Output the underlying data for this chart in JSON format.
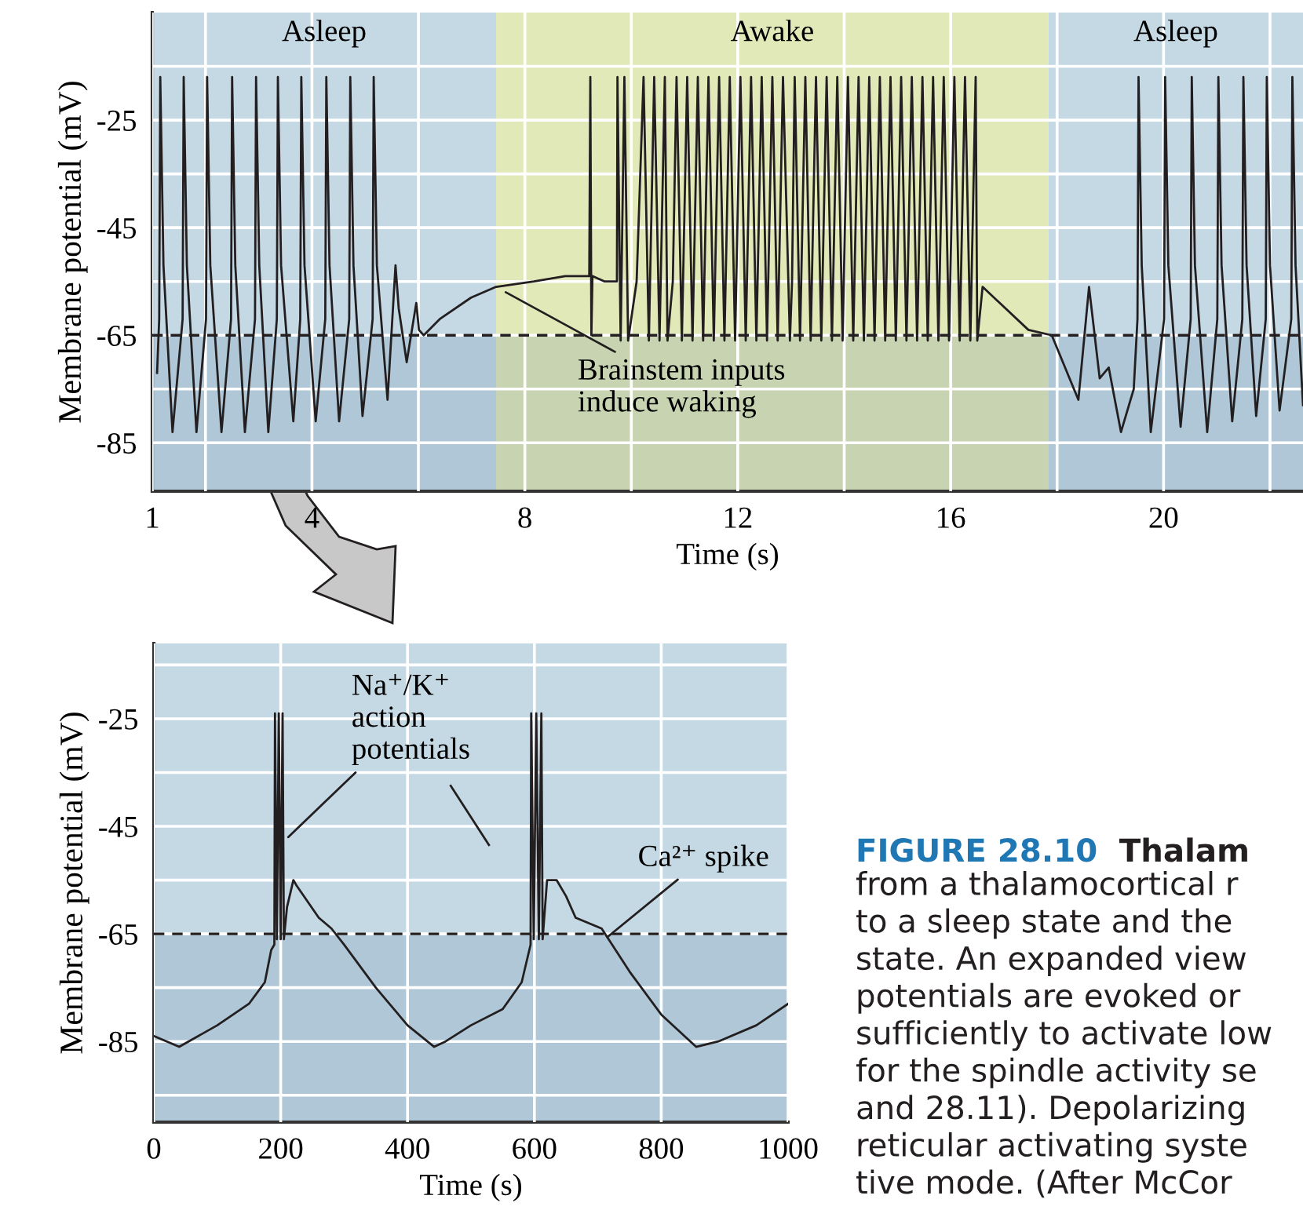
{
  "chart_data": [
    {
      "type": "line",
      "xlabel": "Time (s)",
      "ylabel": "Membrane potential (mV)",
      "xlim": [
        1,
        22.62
      ],
      "ylim": [
        -94,
        -5
      ],
      "xticks": [
        1,
        {
          "value": 2,
          "label": null
        },
        4,
        {
          "value": 6,
          "label": null
        },
        8,
        {
          "value": 10,
          "label": null
        },
        12,
        {
          "value": 14,
          "label": null
        },
        16,
        {
          "value": 18,
          "label": null
        },
        20,
        {
          "value": 22,
          "label": null
        }
      ],
      "yticks": [
        {
          "value": -15,
          "label": null
        },
        -25,
        {
          "value": -35,
          "label": null
        },
        -45,
        {
          "value": -55,
          "label": null
        },
        -65,
        {
          "value": -75,
          "label": null
        },
        -85
      ],
      "grid": true,
      "bands": [
        {
          "axis": "x",
          "from": 1,
          "to": 7.46,
          "label": "Asleep",
          "color": "#c5d9e5"
        },
        {
          "axis": "x",
          "from": 7.46,
          "to": 17.84,
          "label": "Awake",
          "color": "#e2e9b9"
        },
        {
          "axis": "x",
          "from": 17.84,
          "to": 22.62,
          "label": "Asleep",
          "color": "#c5d9e5"
        },
        {
          "axis": "y",
          "from": -94,
          "to": -65,
          "color": "#4a7090"
        }
      ],
      "ref_lines": [
        {
          "axis": "y",
          "value": -65,
          "color": "#231f20",
          "line_style": "dashed"
        }
      ],
      "annotations": [
        {
          "text": "Brainstem inputs\ninduce waking",
          "x": 7.64,
          "y": -57
        }
      ],
      "x": [
        1.09,
        1.13,
        1.15,
        1.21,
        1.38,
        1.57,
        1.59,
        1.65,
        1.83,
        2.01,
        2.03,
        2.09,
        2.3,
        2.48,
        2.5,
        2.56,
        2.74,
        2.93,
        2.95,
        3.01,
        3.18,
        3.34,
        3.36,
        3.42,
        3.65,
        3.78,
        3.8,
        3.86,
        4.07,
        4.25,
        4.27,
        4.33,
        4.51,
        4.7,
        4.72,
        4.78,
        4.95,
        5.14,
        5.16,
        5.22,
        5.42,
        5.57,
        5.63,
        5.78,
        5.96,
        6.01,
        6.1,
        6.4,
        6.99,
        7.46,
        8.17,
        8.76,
        9.21,
        9.23,
        9.25,
        9.27,
        9.5,
        9.73,
        9.74,
        9.8,
        9.87,
        9.94,
        10.1,
        10.23,
        10.33,
        10.43,
        10.53,
        10.63,
        10.68,
        10.78,
        10.85,
        10.95,
        11.05,
        11.15,
        11.25,
        11.35,
        11.45,
        11.55,
        11.65,
        11.75,
        11.85,
        11.95,
        12.05,
        12.15,
        12.25,
        12.35,
        12.45,
        12.55,
        12.65,
        12.75,
        12.85,
        12.98,
        13.02,
        13.07,
        13.17,
        13.27,
        13.37,
        13.47,
        13.57,
        13.67,
        13.77,
        13.87,
        13.97,
        14.07,
        14.17,
        14.27,
        14.37,
        14.47,
        14.57,
        14.67,
        14.77,
        14.87,
        14.97,
        15.07,
        15.17,
        15.27,
        15.37,
        15.47,
        15.57,
        15.67,
        15.77,
        15.87,
        15.97,
        16.07,
        16.17,
        16.27,
        16.37,
        16.47,
        16.5,
        16.6,
        17.46,
        17.9,
        18.4,
        18.6,
        18.8,
        18.97,
        19.2,
        19.44,
        19.51,
        19.53,
        19.59,
        19.76,
        20.01,
        20.03,
        20.09,
        20.32,
        20.51,
        20.53,
        20.59,
        20.82,
        21.01,
        21.03,
        21.09,
        21.29,
        21.48,
        21.5,
        21.56,
        21.74,
        21.92,
        21.94,
        22.0,
        22.18,
        22.4,
        22.42,
        22.48,
        22.62
      ],
      "series": [
        {
          "color": "#231f20",
          "values": [
            -72,
            -62,
            -17,
            -52,
            -83,
            -62,
            -17,
            -52,
            -83,
            -62,
            -17,
            -52,
            -83,
            -62,
            -17,
            -52,
            -83,
            -62,
            -17,
            -52,
            -83,
            -62,
            -17,
            -52,
            -81,
            -62,
            -17,
            -52,
            -81,
            -62,
            -17,
            -52,
            -81,
            -62,
            -17,
            -52,
            -80,
            -62,
            -17,
            -52,
            -77,
            -52,
            -60,
            -70,
            -59,
            -64,
            -65,
            -62,
            -58,
            -56,
            -55,
            -54,
            -54,
            -17,
            -65,
            -54,
            -55,
            -55,
            -17,
            -66,
            -17,
            -66,
            -55,
            -17,
            -66,
            -17,
            -66,
            -17,
            -66,
            -55,
            -17,
            -66,
            -17,
            -66,
            -17,
            -66,
            -17,
            -66,
            -17,
            -66,
            -17,
            -66,
            -17,
            -66,
            -17,
            -66,
            -17,
            -66,
            -17,
            -66,
            -17,
            -66,
            -55,
            -17,
            -66,
            -17,
            -66,
            -17,
            -66,
            -17,
            -66,
            -17,
            -66,
            -17,
            -66,
            -17,
            -66,
            -17,
            -66,
            -17,
            -66,
            -17,
            -66,
            -17,
            -66,
            -17,
            -66,
            -17,
            -66,
            -17,
            -66,
            -17,
            -66,
            -17,
            -66,
            -17,
            -66,
            -17,
            -66,
            -56,
            -64,
            -65,
            -77,
            -56,
            -73,
            -71,
            -83,
            -75,
            -62,
            -17,
            -52,
            -83,
            -62,
            -17,
            -52,
            -82,
            -62,
            -17,
            -52,
            -83,
            -62,
            -17,
            -52,
            -81,
            -62,
            -17,
            -52,
            -80,
            -62,
            -17,
            -52,
            -79,
            -62,
            -17,
            -52,
            -78
          ]
        }
      ]
    },
    {
      "type": "line",
      "xlabel": "Time (s)",
      "ylabel": "Membrane potential (mV)",
      "xlim": [
        0,
        1000
      ],
      "ylim": [
        -100,
        -11
      ],
      "xticks": [
        0,
        200,
        400,
        600,
        800,
        1000
      ],
      "yticks": [
        {
          "value": -15,
          "label": null
        },
        -25,
        {
          "value": -35,
          "label": null
        },
        -45,
        {
          "value": -55,
          "label": null
        },
        -65,
        {
          "value": -75,
          "label": null
        },
        -85,
        {
          "value": -95,
          "label": null
        }
      ],
      "grid": true,
      "bands": [
        {
          "axis": "x",
          "from": 0,
          "to": 1000,
          "color": "#c5d9e5"
        },
        {
          "axis": "y",
          "from": -100,
          "to": -65,
          "color": "#4a7090"
        }
      ],
      "ref_lines": [
        {
          "axis": "y",
          "value": -65,
          "color": "#231f20",
          "line_style": "dashed"
        }
      ],
      "annotations": [
        {
          "text": "Na⁺/K⁺\naction\npotentials",
          "x": 212,
          "y": -47
        },
        {
          "text": "Ca²⁺ spike",
          "x": 715,
          "y": -65.6
        },
        "FIGURE 28.10",
        "Thalam",
        "from a thalamocortical r\nto a sleep state and the\nstate. An expanded view\npotentials are evoked or\nsufficiently to activate low\nfor the spindle activity se\nand 28.11). Depolarizing\nreticular activating syste\ntive mode. (After McCor"
      ],
      "x": [
        0,
        40,
        100,
        150,
        175,
        185,
        190,
        191,
        194,
        197,
        200,
        203,
        205,
        210,
        220,
        225,
        260,
        280,
        300,
        350,
        400,
        442,
        460,
        500,
        550,
        580,
        590,
        594,
        595,
        599,
        603,
        607,
        611,
        613,
        620,
        635,
        650,
        665,
        706,
        750,
        800,
        855,
        890,
        950,
        1000
      ],
      "series": [
        {
          "color": "#231f20",
          "values": [
            -84,
            -86,
            -82,
            -78,
            -74,
            -68,
            -67,
            -24,
            -66,
            -24,
            -66,
            -24,
            -66,
            -60,
            -55,
            -56,
            -62,
            -64,
            -67,
            -75,
            -82,
            -86,
            -85,
            -82,
            -79,
            -74,
            -69,
            -67,
            -24,
            -66,
            -24,
            -66,
            -24,
            -66,
            -55,
            -55,
            -58,
            -62,
            -64,
            -72,
            -80,
            -86,
            -85,
            -82,
            -78
          ]
        }
      ]
    }
  ]
}
